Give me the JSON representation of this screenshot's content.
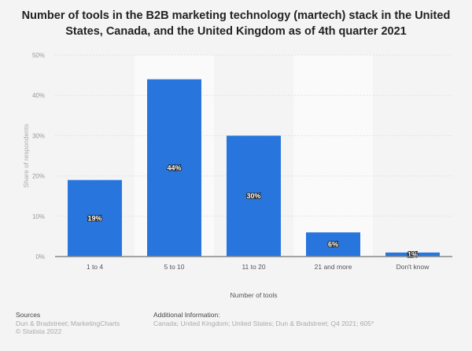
{
  "chart_data": {
    "type": "bar",
    "title": "Number of tools in the B2B marketing technology (martech) stack in the United States, Canada, and the United Kingdom as of 4th quarter 2021",
    "xlabel": "Number of tools",
    "ylabel": "Share of respondents",
    "categories": [
      "1 to 4",
      "5 to 10",
      "11 to 20",
      "21 and more",
      "Don't know"
    ],
    "values": [
      19,
      44,
      30,
      6,
      1
    ],
    "data_labels": [
      "19%",
      "44%",
      "30%",
      "6%",
      "1%"
    ],
    "ylim": [
      0,
      50
    ],
    "yticks": [
      "0%",
      "10%",
      "20%",
      "30%",
      "40%",
      "50%"
    ],
    "grid": true,
    "bar_color": "#2876dd"
  },
  "footer": {
    "sources_label": "Sources",
    "sources": "Dun & Bradstreet; MarketingCharts",
    "copyright": "© Statista 2022",
    "additional_label": "Additional Information:",
    "additional": "Canada; United Kingdom; United States; Dun & Bradstreet; Q4 2021; 605*"
  }
}
